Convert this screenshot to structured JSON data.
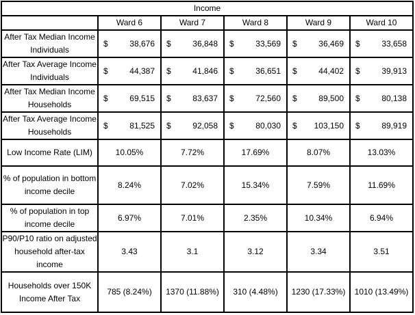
{
  "chart_data": {
    "type": "table",
    "title": "Income",
    "columns": [
      "Ward 6",
      "Ward 7",
      "Ward 8",
      "Ward 9",
      "Ward 10"
    ],
    "currency_symbol": "$",
    "rows": [
      {
        "label": "After Tax Median Income Individuals",
        "format": "currency",
        "values": [
          "38,676",
          "36,848",
          "33,569",
          "36,469",
          "33,658"
        ]
      },
      {
        "label": "After Tax Average Income Individuals",
        "format": "currency",
        "values": [
          "44,387",
          "41,846",
          "36,651",
          "44,402",
          "39,913"
        ]
      },
      {
        "label": "After Tax Median Income Households",
        "format": "currency",
        "values": [
          "69,515",
          "83,637",
          "72,560",
          "89,500",
          "80,138"
        ]
      },
      {
        "label": "After Tax Average Income Households",
        "format": "currency",
        "values": [
          "81,525",
          "92,058",
          "80,030",
          "103,150",
          "89,919"
        ]
      },
      {
        "label": "Low Income Rate (LIM)",
        "format": "center",
        "values": [
          "10.05%",
          "7.72%",
          "17.69%",
          "8.07%",
          "13.03%"
        ]
      },
      {
        "label": "% of population in bottom income decile",
        "format": "center",
        "values": [
          "8.24%",
          "7.02%",
          "15.34%",
          "7.59%",
          "11.69%"
        ]
      },
      {
        "label": "% of population in top  income decile",
        "format": "center",
        "values": [
          "6.97%",
          "7.01%",
          "2.35%",
          "10.34%",
          "6.94%"
        ]
      },
      {
        "label": "P90/P10 ratio on adjusted household after-tax income",
        "format": "center",
        "values": [
          "3.43",
          "3.1",
          "3.12",
          "3.34",
          "3.51"
        ]
      },
      {
        "label": "Households over 150K Income After Tax",
        "format": "center",
        "values": [
          "785 (8.24%)",
          "1370 (11.88%)",
          "310 (4.48%)",
          "1230 (17.33%)",
          "1010 (13.49%)"
        ]
      }
    ],
    "layout": {
      "grid": true,
      "title_position": "top-center",
      "colors": {
        "border": "#000000",
        "background": "#ffffff",
        "text": "#000000"
      }
    }
  }
}
